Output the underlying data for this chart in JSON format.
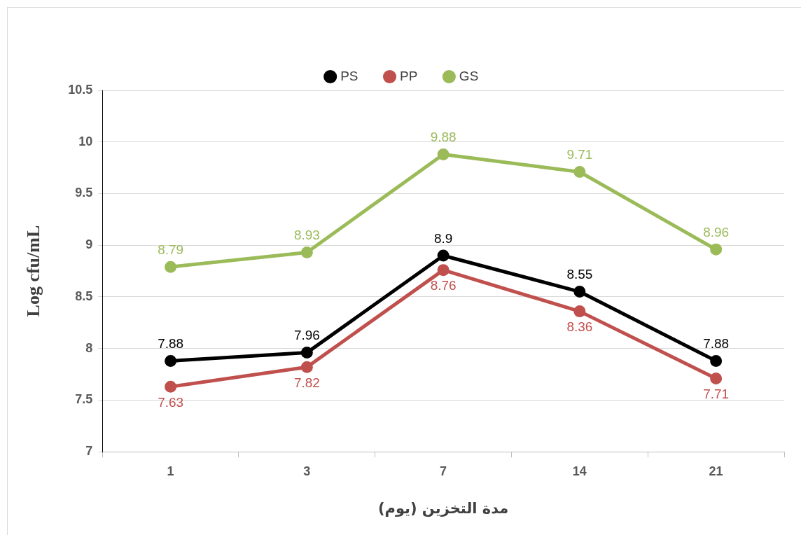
{
  "chart_data": {
    "type": "line",
    "xlabel": "مدة التخزين (يوم)",
    "ylabel": "Log cfu/mL",
    "categories": [
      "1",
      "3",
      "7",
      "14",
      "21"
    ],
    "series": [
      {
        "name": "PS",
        "color": "#000000",
        "values": [
          7.88,
          7.96,
          8.9,
          8.55,
          7.88
        ]
      },
      {
        "name": "PP",
        "color": "#c0504d",
        "values": [
          7.63,
          7.82,
          8.76,
          8.36,
          7.71
        ]
      },
      {
        "name": "GS",
        "color": "#9bbb59",
        "values": [
          8.79,
          8.93,
          9.88,
          9.71,
          8.96
        ]
      }
    ],
    "ylim": [
      7,
      10.5
    ],
    "yticks": [
      7,
      7.5,
      8,
      8.5,
      9,
      9.5,
      10,
      10.5
    ],
    "grid": "y",
    "legend": "top",
    "marker": "circle",
    "line_style": "solid",
    "data_labels": true
  }
}
